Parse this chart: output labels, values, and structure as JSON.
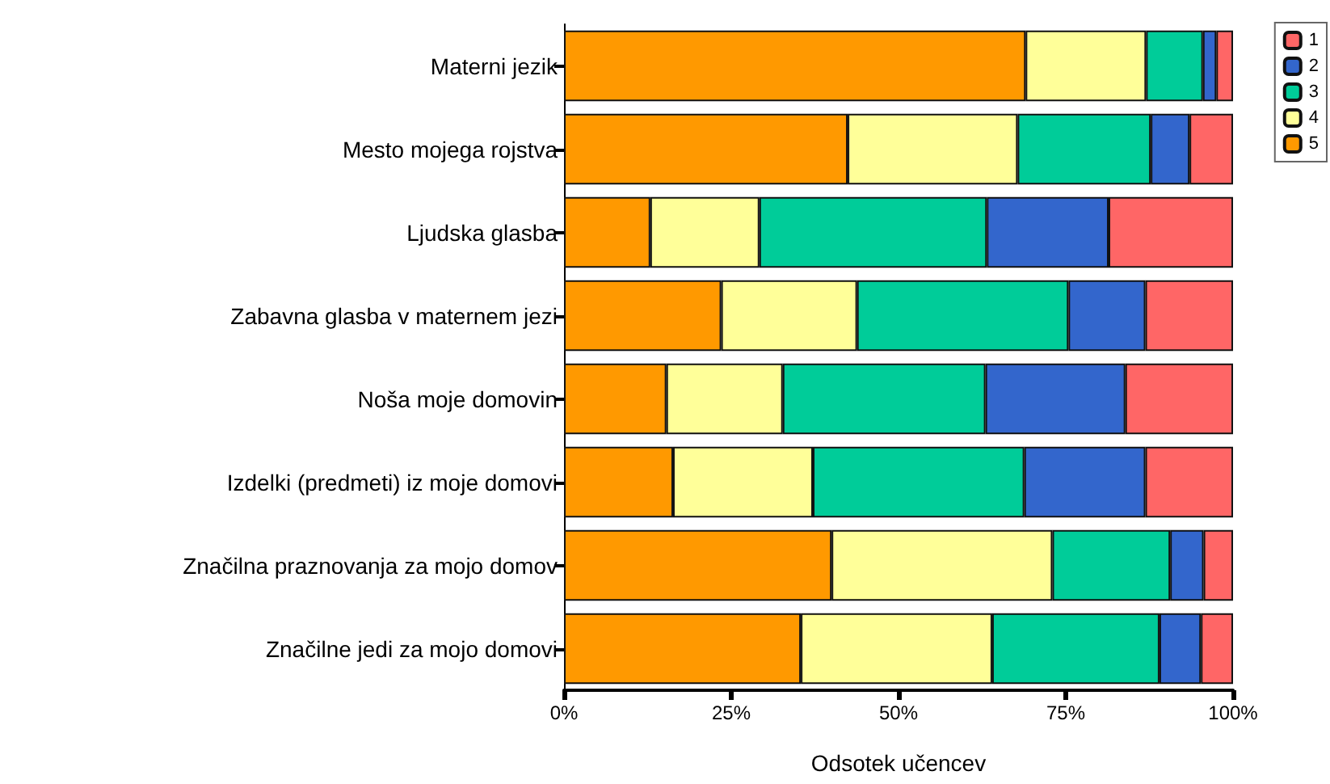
{
  "chart_data": {
    "type": "bar",
    "orientation": "horizontal",
    "stacked": true,
    "xlabel": "Odsotek učencev",
    "categories": [
      "Materni jezik",
      "Mesto mojega rojstva",
      "Ljudska glasba",
      "Zabavna glasba v maternem jezi",
      "Noša moje domovin",
      "Izdelki (predmeti) iz moje domovi",
      "Značilna praznovanja za mojo domov",
      "Značilne jedi za mojo domovi"
    ],
    "series": [
      {
        "name": "5",
        "color": "#ff9900",
        "values": [
          69,
          42.4,
          12.9,
          23.5,
          15.3,
          16.3,
          40,
          35.4
        ]
      },
      {
        "name": "4",
        "color": "#ffff99",
        "values": [
          18,
          25.4,
          16.3,
          20.3,
          17.4,
          20.9,
          33,
          28.6
        ]
      },
      {
        "name": "3",
        "color": "#00cc99",
        "values": [
          8.5,
          19.9,
          34,
          31.6,
          30.3,
          31.6,
          17.6,
          25
        ]
      },
      {
        "name": "2",
        "color": "#3366cc",
        "values": [
          2,
          5.8,
          18.2,
          11.5,
          20.9,
          18.1,
          5,
          6.2
        ]
      },
      {
        "name": "1",
        "color": "#ff6666",
        "values": [
          2.5,
          6.5,
          18.6,
          13.1,
          16.1,
          13.1,
          4.4,
          4.8
        ]
      }
    ],
    "xlim": [
      0,
      100
    ],
    "xticks": [
      {
        "value": 0,
        "label": "0%"
      },
      {
        "value": 25,
        "label": "25%"
      },
      {
        "value": 50,
        "label": "50%"
      },
      {
        "value": 75,
        "label": "75%"
      },
      {
        "value": 100,
        "label": "100%"
      }
    ],
    "grid": false,
    "legend": "top right"
  }
}
